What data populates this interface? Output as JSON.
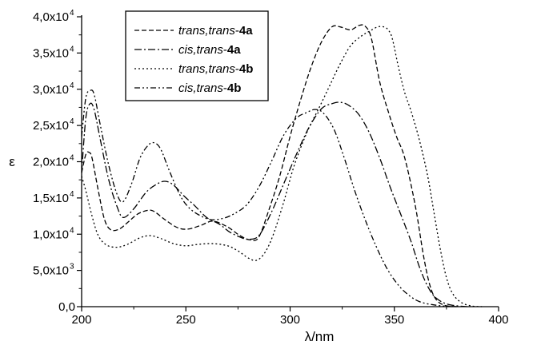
{
  "chart_data": {
    "type": "line",
    "title": "",
    "xlabel": "λ/nm",
    "ylabel": "ε",
    "xlim": [
      200,
      400
    ],
    "ylim": [
      0,
      40000
    ],
    "x_ticks": [
      {
        "value": 200,
        "label": "200"
      },
      {
        "value": 250,
        "label": "250"
      },
      {
        "value": 300,
        "label": "300"
      },
      {
        "value": 350,
        "label": "350"
      },
      {
        "value": 400,
        "label": "400"
      }
    ],
    "y_ticks": [
      {
        "value": 0,
        "label": "0,0"
      },
      {
        "value": 5000,
        "label": "5,0x10",
        "exp": "3"
      },
      {
        "value": 10000,
        "label": "1,0x10",
        "exp": "4"
      },
      {
        "value": 15000,
        "label": "1,5x10",
        "exp": "4"
      },
      {
        "value": 20000,
        "label": "2,0x10",
        "exp": "4"
      },
      {
        "value": 25000,
        "label": "2,5x10",
        "exp": "4"
      },
      {
        "value": 30000,
        "label": "3,0x10",
        "exp": "4"
      },
      {
        "value": 35000,
        "label": "3,5x10",
        "exp": "4"
      },
      {
        "value": 40000,
        "label": "4,0x10",
        "exp": "4"
      }
    ],
    "grid": false,
    "legend_position": "top-left",
    "series": [
      {
        "name_italic": "trans,trans",
        "name_bold": "4a",
        "dash": "6,3",
        "points": [
          [
            200,
            18500
          ],
          [
            202,
            21000
          ],
          [
            203.5,
            21300
          ],
          [
            205,
            20500
          ],
          [
            208,
            16000
          ],
          [
            211,
            12000
          ],
          [
            214,
            10600
          ],
          [
            218,
            10700
          ],
          [
            222,
            11600
          ],
          [
            227,
            12800
          ],
          [
            232,
            13300
          ],
          [
            235,
            13100
          ],
          [
            240,
            12000
          ],
          [
            246,
            10900
          ],
          [
            251,
            10700
          ],
          [
            257,
            11200
          ],
          [
            263,
            11800
          ],
          [
            270,
            11000
          ],
          [
            276,
            9800
          ],
          [
            281,
            9200
          ],
          [
            285,
            9600
          ],
          [
            290,
            13500
          ],
          [
            295,
            18000
          ],
          [
            300,
            23500
          ],
          [
            305,
            28500
          ],
          [
            310,
            33000
          ],
          [
            315,
            36500
          ],
          [
            320,
            38600
          ],
          [
            324,
            38600
          ],
          [
            329,
            38200
          ],
          [
            333,
            38800
          ],
          [
            336,
            38700
          ],
          [
            339,
            37000
          ],
          [
            343,
            31000
          ],
          [
            347,
            27000
          ],
          [
            351,
            23500
          ],
          [
            355,
            20500
          ],
          [
            360,
            14000
          ],
          [
            364,
            7000
          ],
          [
            367,
            3000
          ],
          [
            370,
            1000
          ],
          [
            374,
            200
          ],
          [
            380,
            0
          ]
        ]
      },
      {
        "name_italic": "cis,trans",
        "name_bold": "4a",
        "dash": "9,3,2,3",
        "points": [
          [
            200,
            18500
          ],
          [
            202,
            26000
          ],
          [
            204,
            28000
          ],
          [
            206,
            27200
          ],
          [
            209,
            23000
          ],
          [
            213,
            17500
          ],
          [
            217,
            13800
          ],
          [
            220,
            12300
          ],
          [
            225,
            13500
          ],
          [
            231,
            15800
          ],
          [
            236,
            16900
          ],
          [
            240,
            17300
          ],
          [
            244,
            16800
          ],
          [
            249,
            15300
          ],
          [
            254,
            14000
          ],
          [
            260,
            12300
          ],
          [
            266,
            11400
          ],
          [
            271,
            10300
          ],
          [
            276,
            9600
          ],
          [
            280,
            9300
          ],
          [
            285,
            9800
          ],
          [
            291,
            13000
          ],
          [
            297,
            17000
          ],
          [
            303,
            21000
          ],
          [
            309,
            24700
          ],
          [
            315,
            27300
          ],
          [
            320,
            28000
          ],
          [
            324,
            28200
          ],
          [
            328,
            27800
          ],
          [
            333,
            26500
          ],
          [
            338,
            24000
          ],
          [
            343,
            20500
          ],
          [
            348,
            16500
          ],
          [
            353,
            12800
          ],
          [
            358,
            9000
          ],
          [
            362,
            5500
          ],
          [
            366,
            2800
          ],
          [
            370,
            1200
          ],
          [
            376,
            300
          ],
          [
            385,
            0
          ]
        ]
      },
      {
        "name_italic": "trans,trans",
        "name_bold": "4b",
        "dash": "2,3",
        "points": [
          [
            200,
            18000
          ],
          [
            202,
            16000
          ],
          [
            205,
            12500
          ],
          [
            208,
            9800
          ],
          [
            212,
            8500
          ],
          [
            217,
            8200
          ],
          [
            222,
            8600
          ],
          [
            228,
            9500
          ],
          [
            233,
            9800
          ],
          [
            238,
            9400
          ],
          [
            244,
            8700
          ],
          [
            250,
            8400
          ],
          [
            256,
            8600
          ],
          [
            263,
            8700
          ],
          [
            270,
            8400
          ],
          [
            275,
            7700
          ],
          [
            280,
            6700
          ],
          [
            284,
            6400
          ],
          [
            288,
            7500
          ],
          [
            292,
            10000
          ],
          [
            297,
            14500
          ],
          [
            302,
            19500
          ],
          [
            308,
            24000
          ],
          [
            314,
            27500
          ],
          [
            319,
            30500
          ],
          [
            324,
            33500
          ],
          [
            329,
            36000
          ],
          [
            334,
            37300
          ],
          [
            338,
            38000
          ],
          [
            342,
            38600
          ],
          [
            345,
            38600
          ],
          [
            347,
            38200
          ],
          [
            349,
            37000
          ],
          [
            352,
            33000
          ],
          [
            355,
            29500
          ],
          [
            358,
            27000
          ],
          [
            362,
            23000
          ],
          [
            366,
            18000
          ],
          [
            369,
            13000
          ],
          [
            372,
            8000
          ],
          [
            375,
            4000
          ],
          [
            378,
            1800
          ],
          [
            382,
            600
          ],
          [
            387,
            100
          ],
          [
            392,
            0
          ]
        ]
      },
      {
        "name_italic": "cis,trans",
        "name_bold": "4b",
        "dash": "7,3,2,3,2,3",
        "points": [
          [
            200,
            23500
          ],
          [
            202,
            28800
          ],
          [
            204,
            29800
          ],
          [
            206,
            29300
          ],
          [
            209,
            25000
          ],
          [
            213,
            19500
          ],
          [
            217,
            15500
          ],
          [
            220,
            14500
          ],
          [
            224,
            17000
          ],
          [
            228,
            20500
          ],
          [
            232,
            22300
          ],
          [
            235,
            22600
          ],
          [
            238,
            21700
          ],
          [
            242,
            18800
          ],
          [
            247,
            15500
          ],
          [
            251,
            13800
          ],
          [
            256,
            12700
          ],
          [
            262,
            12000
          ],
          [
            268,
            12200
          ],
          [
            273,
            12800
          ],
          [
            279,
            14000
          ],
          [
            285,
            16500
          ],
          [
            291,
            20000
          ],
          [
            297,
            23700
          ],
          [
            303,
            26000
          ],
          [
            308,
            26800
          ],
          [
            312,
            27200
          ],
          [
            316,
            26700
          ],
          [
            321,
            24500
          ],
          [
            326,
            20500
          ],
          [
            331,
            16000
          ],
          [
            336,
            12000
          ],
          [
            341,
            8500
          ],
          [
            346,
            5500
          ],
          [
            351,
            3300
          ],
          [
            356,
            1800
          ],
          [
            362,
            700
          ],
          [
            370,
            200
          ],
          [
            378,
            0
          ]
        ]
      }
    ]
  }
}
